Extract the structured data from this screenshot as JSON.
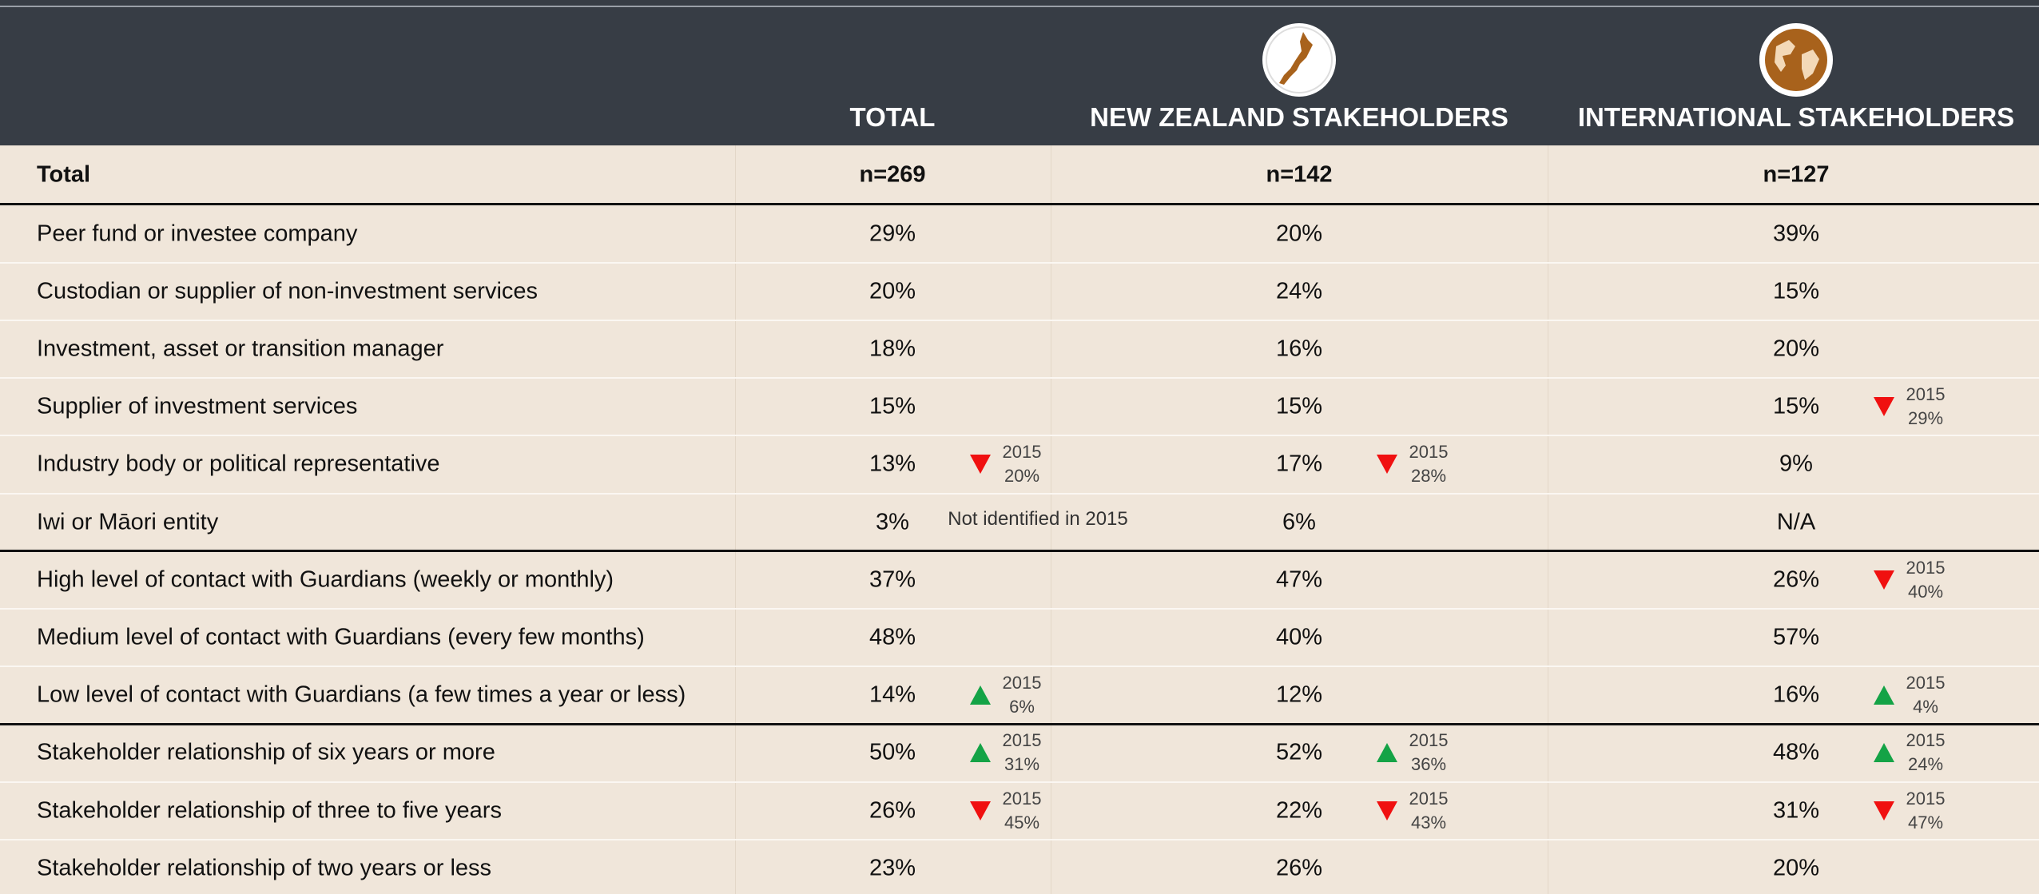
{
  "header": {
    "columns": [
      "TOTAL",
      "NEW ZEALAND STAKEHOLDERS",
      "INTERNATIONAL STAKEHOLDERS"
    ]
  },
  "table": {
    "total_row": {
      "label": "Total",
      "cells": [
        "n=269",
        "n=142",
        "n=127"
      ]
    },
    "groups": [
      {
        "rows": [
          {
            "label": "Peer fund or investee company",
            "cells": [
              {
                "value": "29%"
              },
              {
                "value": "20%"
              },
              {
                "value": "39%"
              }
            ]
          },
          {
            "label": "Custodian or supplier of non-investment services",
            "cells": [
              {
                "value": "20%"
              },
              {
                "value": "24%"
              },
              {
                "value": "15%"
              }
            ]
          },
          {
            "label": "Investment, asset or transition manager",
            "cells": [
              {
                "value": "18%"
              },
              {
                "value": "16%"
              },
              {
                "value": "20%"
              }
            ]
          },
          {
            "label": "Supplier of investment services",
            "cells": [
              {
                "value": "15%"
              },
              {
                "value": "15%"
              },
              {
                "value": "15%",
                "change": {
                  "direction": "down",
                  "year": "2015",
                  "value": "29%"
                }
              }
            ]
          },
          {
            "label": "Industry body or political representative",
            "cells": [
              {
                "value": "13%",
                "change": {
                  "direction": "down",
                  "year": "2015",
                  "value": "20%"
                }
              },
              {
                "value": "17%",
                "change": {
                  "direction": "down",
                  "year": "2015",
                  "value": "28%"
                }
              },
              {
                "value": "9%"
              }
            ]
          },
          {
            "label": "Iwi or Māori entity",
            "cells": [
              {
                "value": "3%",
                "note": "Not identified in 2015"
              },
              {
                "value": "6%"
              },
              {
                "value": "N/A"
              }
            ]
          }
        ]
      },
      {
        "rows": [
          {
            "label": "High level of contact with Guardians (weekly or monthly)",
            "cells": [
              {
                "value": "37%"
              },
              {
                "value": "47%"
              },
              {
                "value": "26%",
                "change": {
                  "direction": "down",
                  "year": "2015",
                  "value": "40%"
                }
              }
            ]
          },
          {
            "label": "Medium level of contact with Guardians (every few months)",
            "cells": [
              {
                "value": "48%"
              },
              {
                "value": "40%"
              },
              {
                "value": "57%"
              }
            ]
          },
          {
            "label": "Low level of contact with Guardians (a few times a year or less)",
            "cells": [
              {
                "value": "14%",
                "change": {
                  "direction": "up",
                  "year": "2015",
                  "value": "6%"
                }
              },
              {
                "value": "12%"
              },
              {
                "value": "16%",
                "change": {
                  "direction": "up",
                  "year": "2015",
                  "value": "4%"
                }
              }
            ]
          }
        ]
      },
      {
        "rows": [
          {
            "label": "Stakeholder relationship of six years or more",
            "cells": [
              {
                "value": "50%",
                "change": {
                  "direction": "up",
                  "year": "2015",
                  "value": "31%"
                }
              },
              {
                "value": "52%",
                "change": {
                  "direction": "up",
                  "year": "2015",
                  "value": "36%"
                }
              },
              {
                "value": "48%",
                "change": {
                  "direction": "up",
                  "year": "2015",
                  "value": "24%"
                }
              }
            ]
          },
          {
            "label": "Stakeholder relationship of three to five years",
            "cells": [
              {
                "value": "26%",
                "change": {
                  "direction": "down",
                  "year": "2015",
                  "value": "45%"
                }
              },
              {
                "value": "22%",
                "change": {
                  "direction": "down",
                  "year": "2015",
                  "value": "43%"
                }
              },
              {
                "value": "31%",
                "change": {
                  "direction": "down",
                  "year": "2015",
                  "value": "47%"
                }
              }
            ]
          },
          {
            "label": "Stakeholder relationship of two years or less",
            "cells": [
              {
                "value": "23%"
              },
              {
                "value": "26%"
              },
              {
                "value": "20%"
              }
            ]
          }
        ]
      }
    ]
  }
}
